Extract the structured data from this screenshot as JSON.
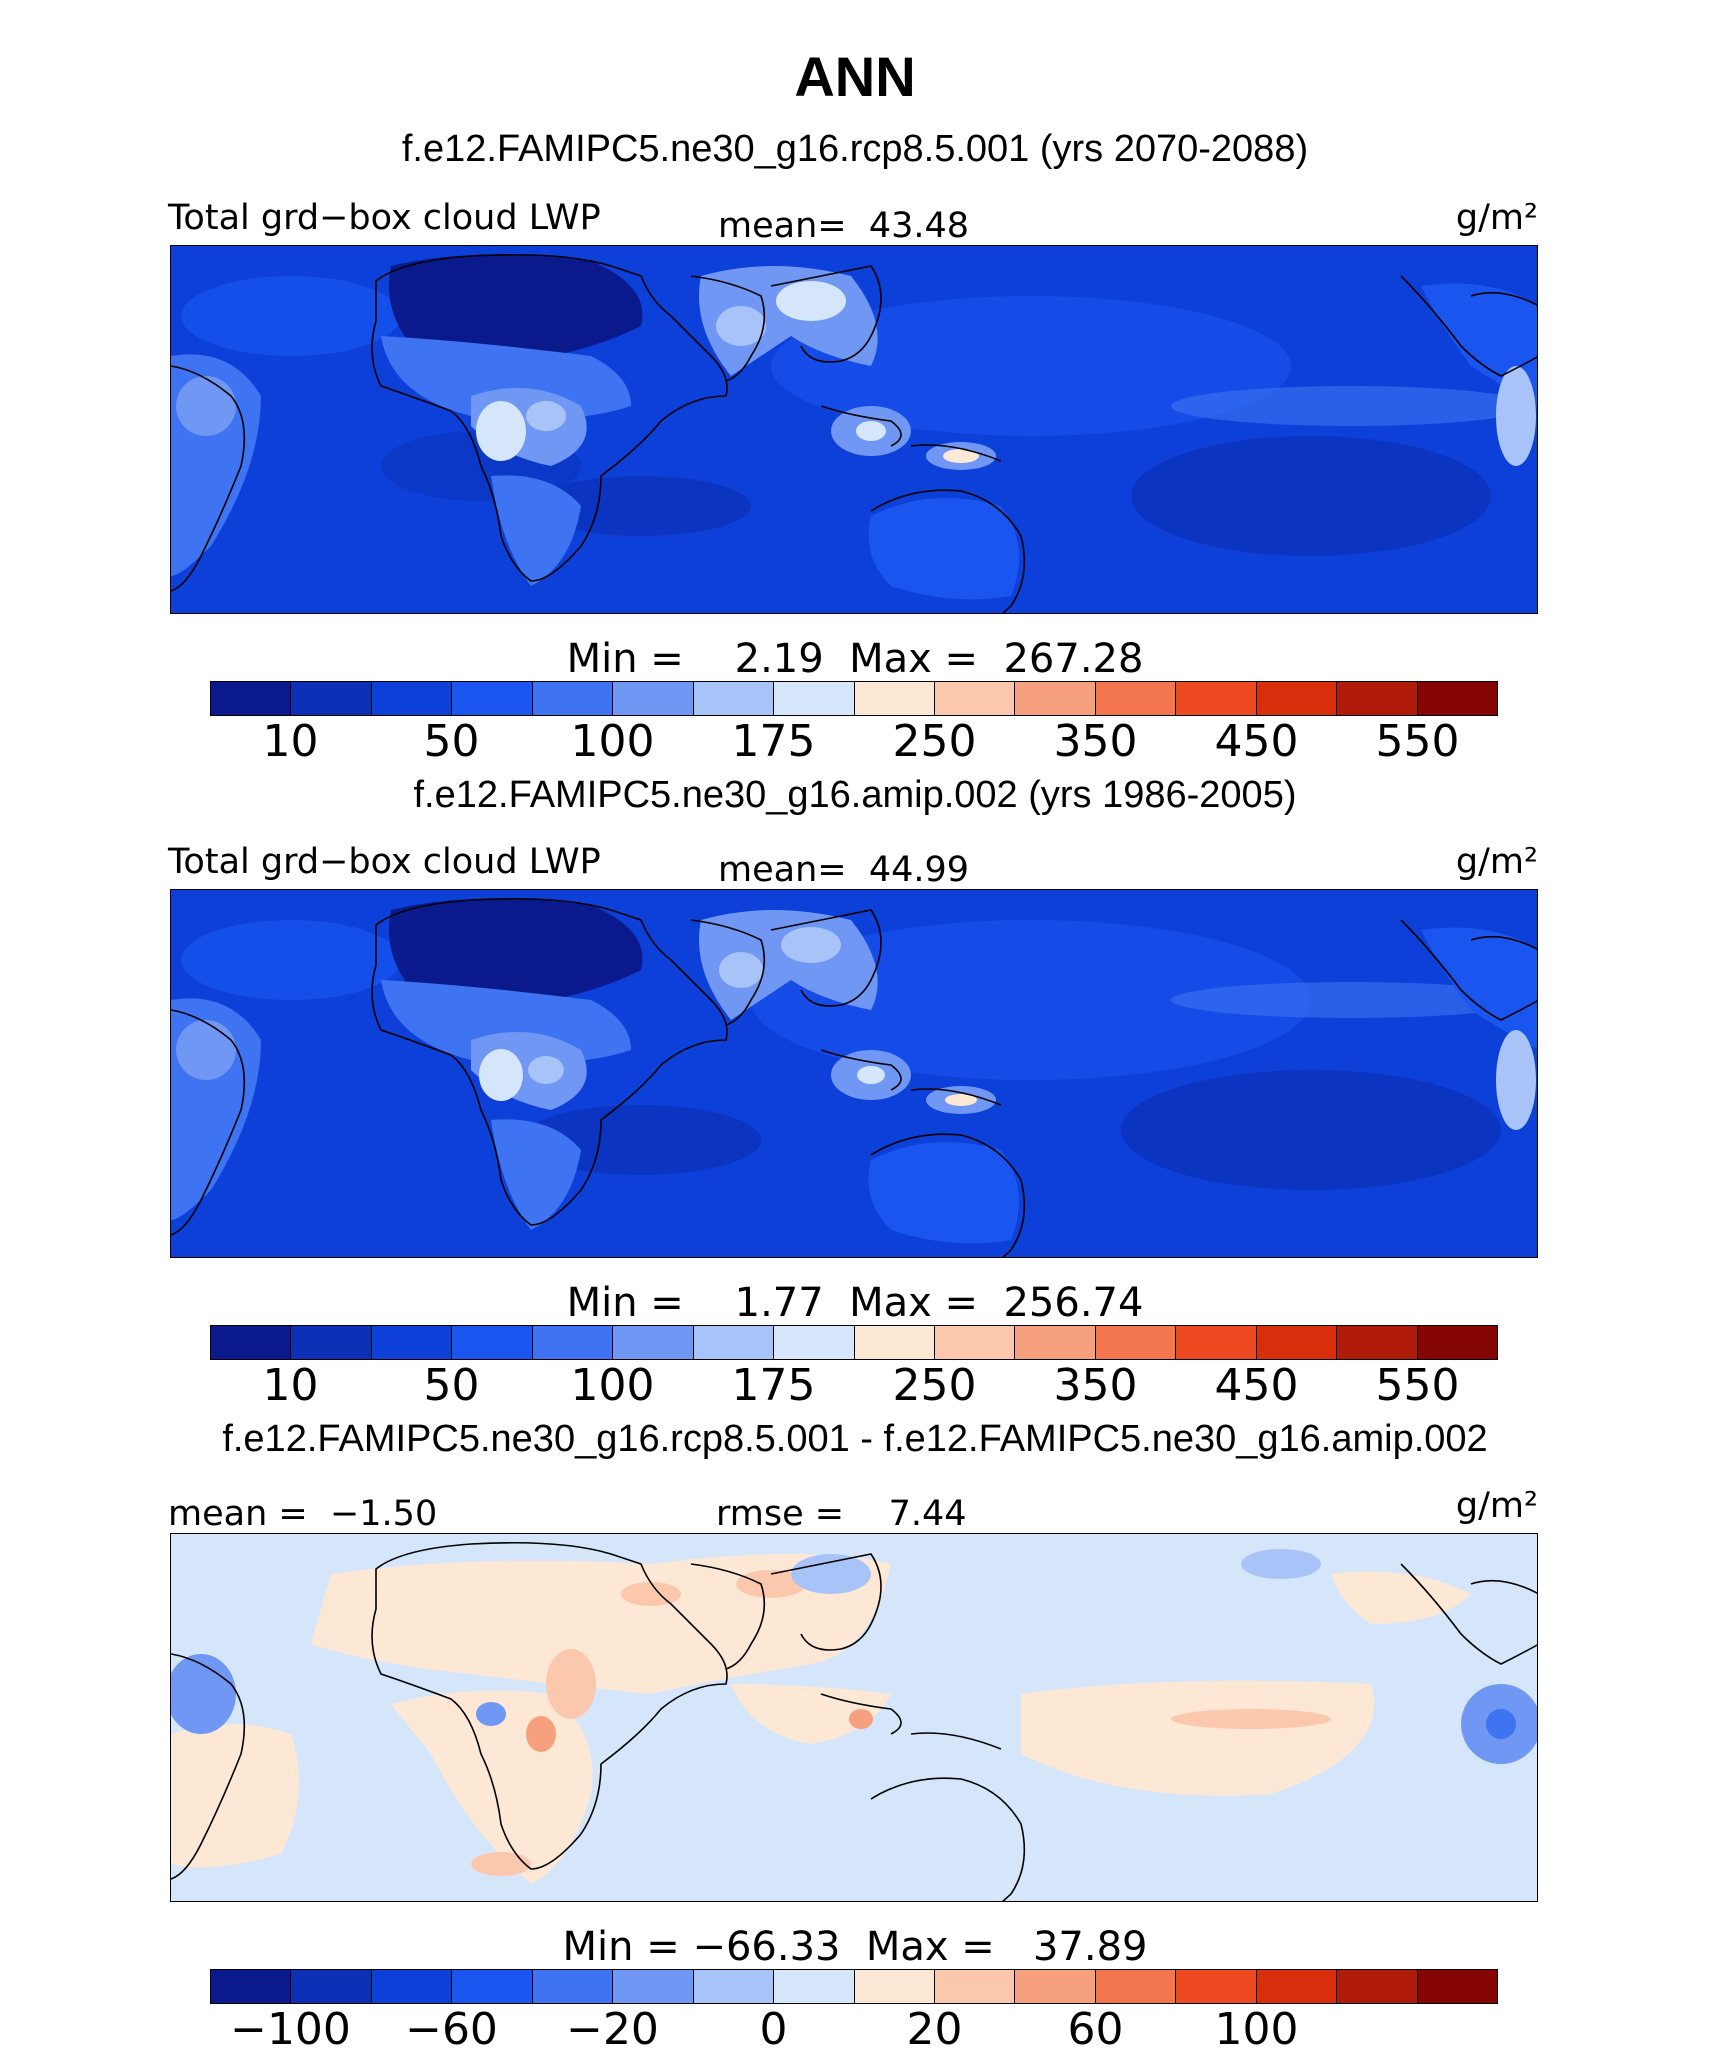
{
  "title": "ANN",
  "panels": [
    {
      "title": "f.e12.FAMIPC5.ne30_g16.rcp8.5.001 (yrs 2070-2088)",
      "left_label": "Total grd−box cloud LWP",
      "center_label": "mean=  43.48",
      "units": "g/m²",
      "minmax": "Min =    2.19  Max =  267.28",
      "colorbar_ticks": [
        "10",
        "50",
        "100",
        "175",
        "250",
        "350",
        "450",
        "550"
      ],
      "colorbar_colors": [
        "#0a1a8c",
        "#0b2fb5",
        "#0d40d9",
        "#1a55f0",
        "#3e74f2",
        "#6f97f3",
        "#a8c3f7",
        "#d5e6fb",
        "#fde8d6",
        "#fbc8ae",
        "#f7a07e",
        "#f3764f",
        "#ee4a22",
        "#d82e0b",
        "#b01a08",
        "#850503"
      ]
    },
    {
      "title": "f.e12.FAMIPC5.ne30_g16.amip.002 (yrs 1986-2005)",
      "left_label": "Total grd−box cloud LWP",
      "center_label": "mean=  44.99",
      "units": "g/m²",
      "minmax": "Min =    1.77  Max =  256.74",
      "colorbar_ticks": [
        "10",
        "50",
        "100",
        "175",
        "250",
        "350",
        "450",
        "550"
      ],
      "colorbar_colors": [
        "#0a1a8c",
        "#0b2fb5",
        "#0d40d9",
        "#1a55f0",
        "#3e74f2",
        "#6f97f3",
        "#a8c3f7",
        "#d5e6fb",
        "#fde8d6",
        "#fbc8ae",
        "#f7a07e",
        "#f3764f",
        "#ee4a22",
        "#d82e0b",
        "#b01a08",
        "#850503"
      ]
    },
    {
      "title": "f.e12.FAMIPC5.ne30_g16.rcp8.5.001 - f.e12.FAMIPC5.ne30_g16.amip.002",
      "left_label": "mean =  −1.50",
      "center_label": "rmse =    7.44",
      "units": "g/m²",
      "minmax": "Min = −66.33  Max =   37.89",
      "colorbar_ticks": [
        "−100",
        "−60",
        "−20",
        "0",
        "20",
        "60",
        "100"
      ],
      "colorbar_colors": [
        "#0a1a8c",
        "#0b2fb5",
        "#0d40d9",
        "#1a55f0",
        "#3e74f2",
        "#6f97f3",
        "#a8c3f7",
        "#d5e6fb",
        "#fde8d6",
        "#fbc8ae",
        "#f7a07e",
        "#f3764f",
        "#ee4a22",
        "#d82e0b",
        "#b01a08",
        "#850503"
      ]
    }
  ],
  "chart_data": [
    {
      "type": "heatmap",
      "title": "f.e12.FAMIPC5.ne30_g16.rcp8.5.001 (yrs 2070-2088)",
      "variable": "Total grd−box cloud LWP",
      "units": "g/m²",
      "mean": 43.48,
      "min": 2.19,
      "max": 267.28,
      "colorbar_levels": [
        10,
        50,
        100,
        175,
        250,
        350,
        450,
        550
      ]
    },
    {
      "type": "heatmap",
      "title": "f.e12.FAMIPC5.ne30_g16.amip.002 (yrs 1986-2005)",
      "variable": "Total grd−box cloud LWP",
      "units": "g/m²",
      "mean": 44.99,
      "min": 1.77,
      "max": 256.74,
      "colorbar_levels": [
        10,
        50,
        100,
        175,
        250,
        350,
        450,
        550
      ]
    },
    {
      "type": "heatmap",
      "title": "f.e12.FAMIPC5.ne30_g16.rcp8.5.001 - f.e12.FAMIPC5.ne30_g16.amip.002",
      "units": "g/m²",
      "mean": -1.5,
      "rmse": 7.44,
      "min": -66.33,
      "max": 37.89,
      "colorbar_levels": [
        -100,
        -60,
        -20,
        0,
        20,
        60,
        100
      ]
    }
  ]
}
